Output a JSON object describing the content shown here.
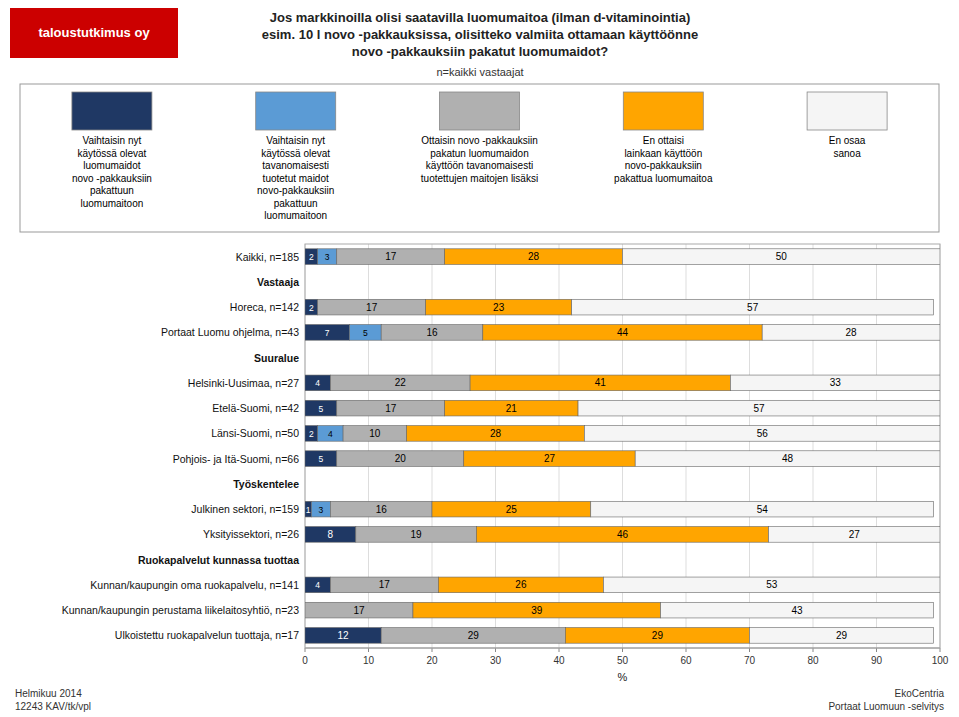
{
  "chart_data": {
    "type": "bar",
    "orientation": "horizontal",
    "stacked": true,
    "data_labels": true,
    "grid": true,
    "legend": "top",
    "title": "Jos markkinoilla olisi saatavilla luomumaitoa (ilman d-vitaminointia)\nesim. 10 l novo -pakkauksissa, olisitteko valmiita ottamaan käyttöönne\nnovo -pakkauksiin pakatut luomumaidot?",
    "subtitle": "n=kaikki vastaajat",
    "x_label": "%",
    "annotations": [
      "taloustutkimus oy",
      "Helmikuu 2014\n12243 KAV/tk/vpl",
      "EkoCentria\nPortaat Luomuun -selvitys"
    ],
    "categories": [
      "Kaikki, n=185",
      "Vastaaja",
      "Horeca, n=142",
      "Portaat Luomu ohjelma, n=43",
      "Suuralue",
      "Helsinki-Uusimaa, n=27",
      "Etelä-Suomi, n=42",
      "Länsi-Suomi, n=50",
      "Pohjois- ja Itä-Suomi, n=66",
      "Työskentelee",
      "Julkinen sektori, n=159",
      "Yksityissektori, n=26",
      "Ruokapalvelut kunnassa tuottaa",
      "Kunnan/kaupungin oma ruokapalvelu, n=141",
      "Kunnan/kaupungin perustama liikelaitosyhtiö, n=23",
      "Ulkoistettu ruokapalvelun tuottaja, n=17"
    ],
    "series": [
      {
        "name": "Vaihtaisin nyt\nkäytössä olevat\nluomumaidot\nnovo -pakkauksiin\npakattuun\nluomumaitoon",
        "color": "#1f3864",
        "values": [
          2,
          null,
          2,
          7,
          null,
          4,
          5,
          2,
          5,
          null,
          1,
          8,
          null,
          4,
          0,
          12
        ]
      },
      {
        "name": "Vaihtaisin nyt\nkäytössä olevat\ntavanomaisesti\ntuotetut maidot\nnovo-pakkauksiin\npakattuun\nluomumaitoon",
        "color": "#5b9bd5",
        "values": [
          3,
          null,
          0,
          5,
          null,
          0,
          0,
          4,
          0,
          null,
          3,
          0,
          null,
          0,
          0,
          0
        ]
      },
      {
        "name": "Ottaisin novo -pakkauksiin\npakatun luomumaidon\nkäyttöön tavanomaisesti\ntuotettujen maitojen lisäksi",
        "color": "#b0b0b0",
        "values": [
          17,
          null,
          17,
          16,
          null,
          22,
          17,
          10,
          20,
          null,
          16,
          19,
          null,
          17,
          17,
          29
        ]
      },
      {
        "name": "En ottaisi\nlainkaan käyttöön\nnovo-pakkauksiin\npakattua luomumaitoa",
        "color": "#ffa500",
        "values": [
          28,
          null,
          23,
          44,
          null,
          41,
          21,
          28,
          27,
          null,
          25,
          46,
          null,
          26,
          39,
          29
        ]
      },
      {
        "name": "En osaa\nsanoa",
        "color": "#f5f5f5",
        "values": [
          50,
          null,
          57,
          28,
          null,
          33,
          57,
          56,
          48,
          null,
          54,
          27,
          null,
          53,
          43,
          29
        ]
      }
    ],
    "xlim": [
      0,
      100
    ],
    "xticks": [
      0,
      10,
      20,
      30,
      40,
      50,
      60,
      70,
      80,
      90,
      100
    ]
  }
}
